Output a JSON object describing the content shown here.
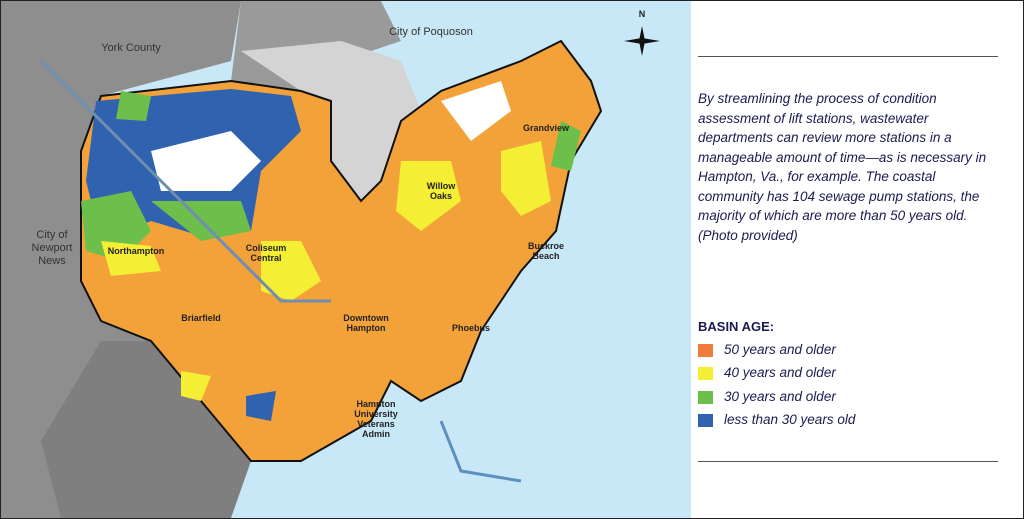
{
  "map": {
    "compass": "N",
    "labels": [
      "York County",
      "City of Poquoson",
      "City of Newport News",
      "Northampton",
      "Coliseum Central",
      "Downtown Hampton",
      "Briarfield",
      "Hampton University Veterans Admin",
      "Willow Oaks",
      "Buckroe Beach",
      "Phoebus",
      "Grandview"
    ]
  },
  "caption": "By streamlining the process of condition assessment of lift stations, wastewater departments can review more stations in a manageable amount of time—as is necessary in Hampton, Va., for example. The coastal community has 104 sewage pump stations, the majority of which are more than 50 years old. (Photo provided)",
  "legend": {
    "title": "BASIN AGE:",
    "items": [
      {
        "label": "50 years and older",
        "color": "#f07c3c"
      },
      {
        "label": "40 years and older",
        "color": "#f4ee34"
      },
      {
        "label": "30 years and older",
        "color": "#6cbf4a"
      },
      {
        "label": "less than 30 years old",
        "color": "#2f63b0"
      }
    ]
  }
}
